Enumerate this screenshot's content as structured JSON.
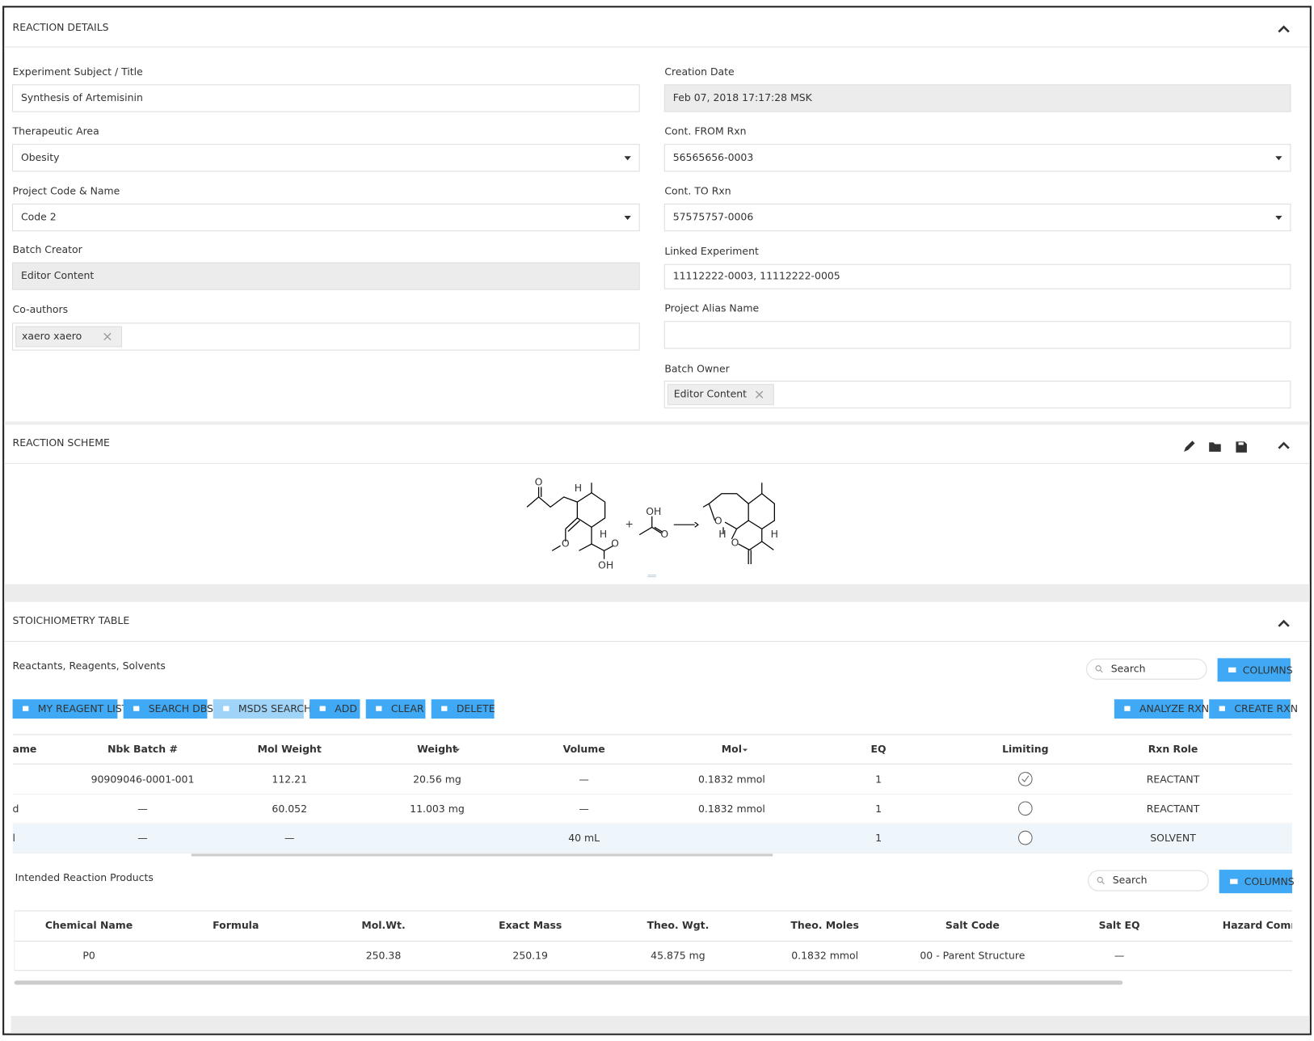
{
  "reaction_details": {
    "title": "REACTION DETAILS",
    "fields": [
      {
        "label": "Experiment Subject / Title",
        "value": "Synthesis of Artemisinin"
      },
      {
        "label": "Therapeutic Area",
        "value": "Obesity"
      },
      {
        "label": "Project Code & Name",
        "value": "Code 2"
      },
      {
        "label": "Batch Creator",
        "value": "Editor Content"
      },
      {
        "label": "Co-authors",
        "value": "xaero xaero"
      },
      {
        "label": "Creation Date",
        "value": "Feb 07, 2018 17:17:28 MSK"
      },
      {
        "label": "Cont. FROM Rxn",
        "value": "56565656-0003"
      },
      {
        "label": "Cont. TO Rxn",
        "value": "57575757-0006"
      },
      {
        "label": "Linked Experiment",
        "value": "11112222-0003, 11112222-0005"
      },
      {
        "label": "Project Alias Name"
      },
      {
        "label": "Batch Owner",
        "value": "Editor Content"
      }
    ]
  },
  "reaction_scheme": {
    "title": "REACTION SCHEME",
    "labels": [
      "O",
      "H",
      "H",
      "O",
      "O",
      "OH",
      "+",
      "OH",
      "O",
      "O",
      "O",
      "H",
      "H"
    ]
  },
  "stoichiometry": {
    "title": "STOICHIOMETRY TABLE",
    "subtitle": "Reactants, Reagents, Solvents",
    "search": "Search",
    "columns_button": "COLUMNS",
    "buttons": [
      "MY REAGENT LIST",
      "SEARCH DBS",
      "MSDS SEARCH",
      "ADD",
      "CLEAR",
      "DELETE",
      "ANALYZE RXN",
      "CREATE RXN"
    ],
    "columns": [
      "ame",
      "Nbk Batch #",
      "Mol Weight",
      "Weight",
      "Volume",
      "Mol",
      "EQ",
      "Limiting",
      "Rxn Role"
    ],
    "rows": [
      [
        null,
        "90909046-0001-001",
        "112.21",
        "20.56 mg",
        "—",
        "0.1832 mmol",
        "1",
        null,
        "REACTANT"
      ],
      [
        "d",
        "—",
        "60.052",
        "11.003 mg",
        "—",
        "0.1832 mmol",
        "1",
        null,
        "REACTANT"
      ],
      [
        "l",
        "—",
        "—",
        null,
        "40 mL",
        null,
        "1",
        null,
        "SOLVENT"
      ]
    ]
  },
  "products": {
    "title": "Intended Reaction Products",
    "search": "Search",
    "columns_button": "COLUMNS",
    "columns": [
      "Chemical Name",
      "Formula",
      "Mol.Wt.",
      "Exact Mass",
      "Theo. Wgt.",
      "Theo. Moles",
      "Salt Code",
      "Salt EQ",
      "Hazard Comm"
    ],
    "rows": [
      [
        "P0",
        null,
        "250.38",
        "250.19",
        "45.875 mg",
        "0.1832 mmol",
        "00 - Parent Structure",
        "—",
        null
      ]
    ]
  }
}
